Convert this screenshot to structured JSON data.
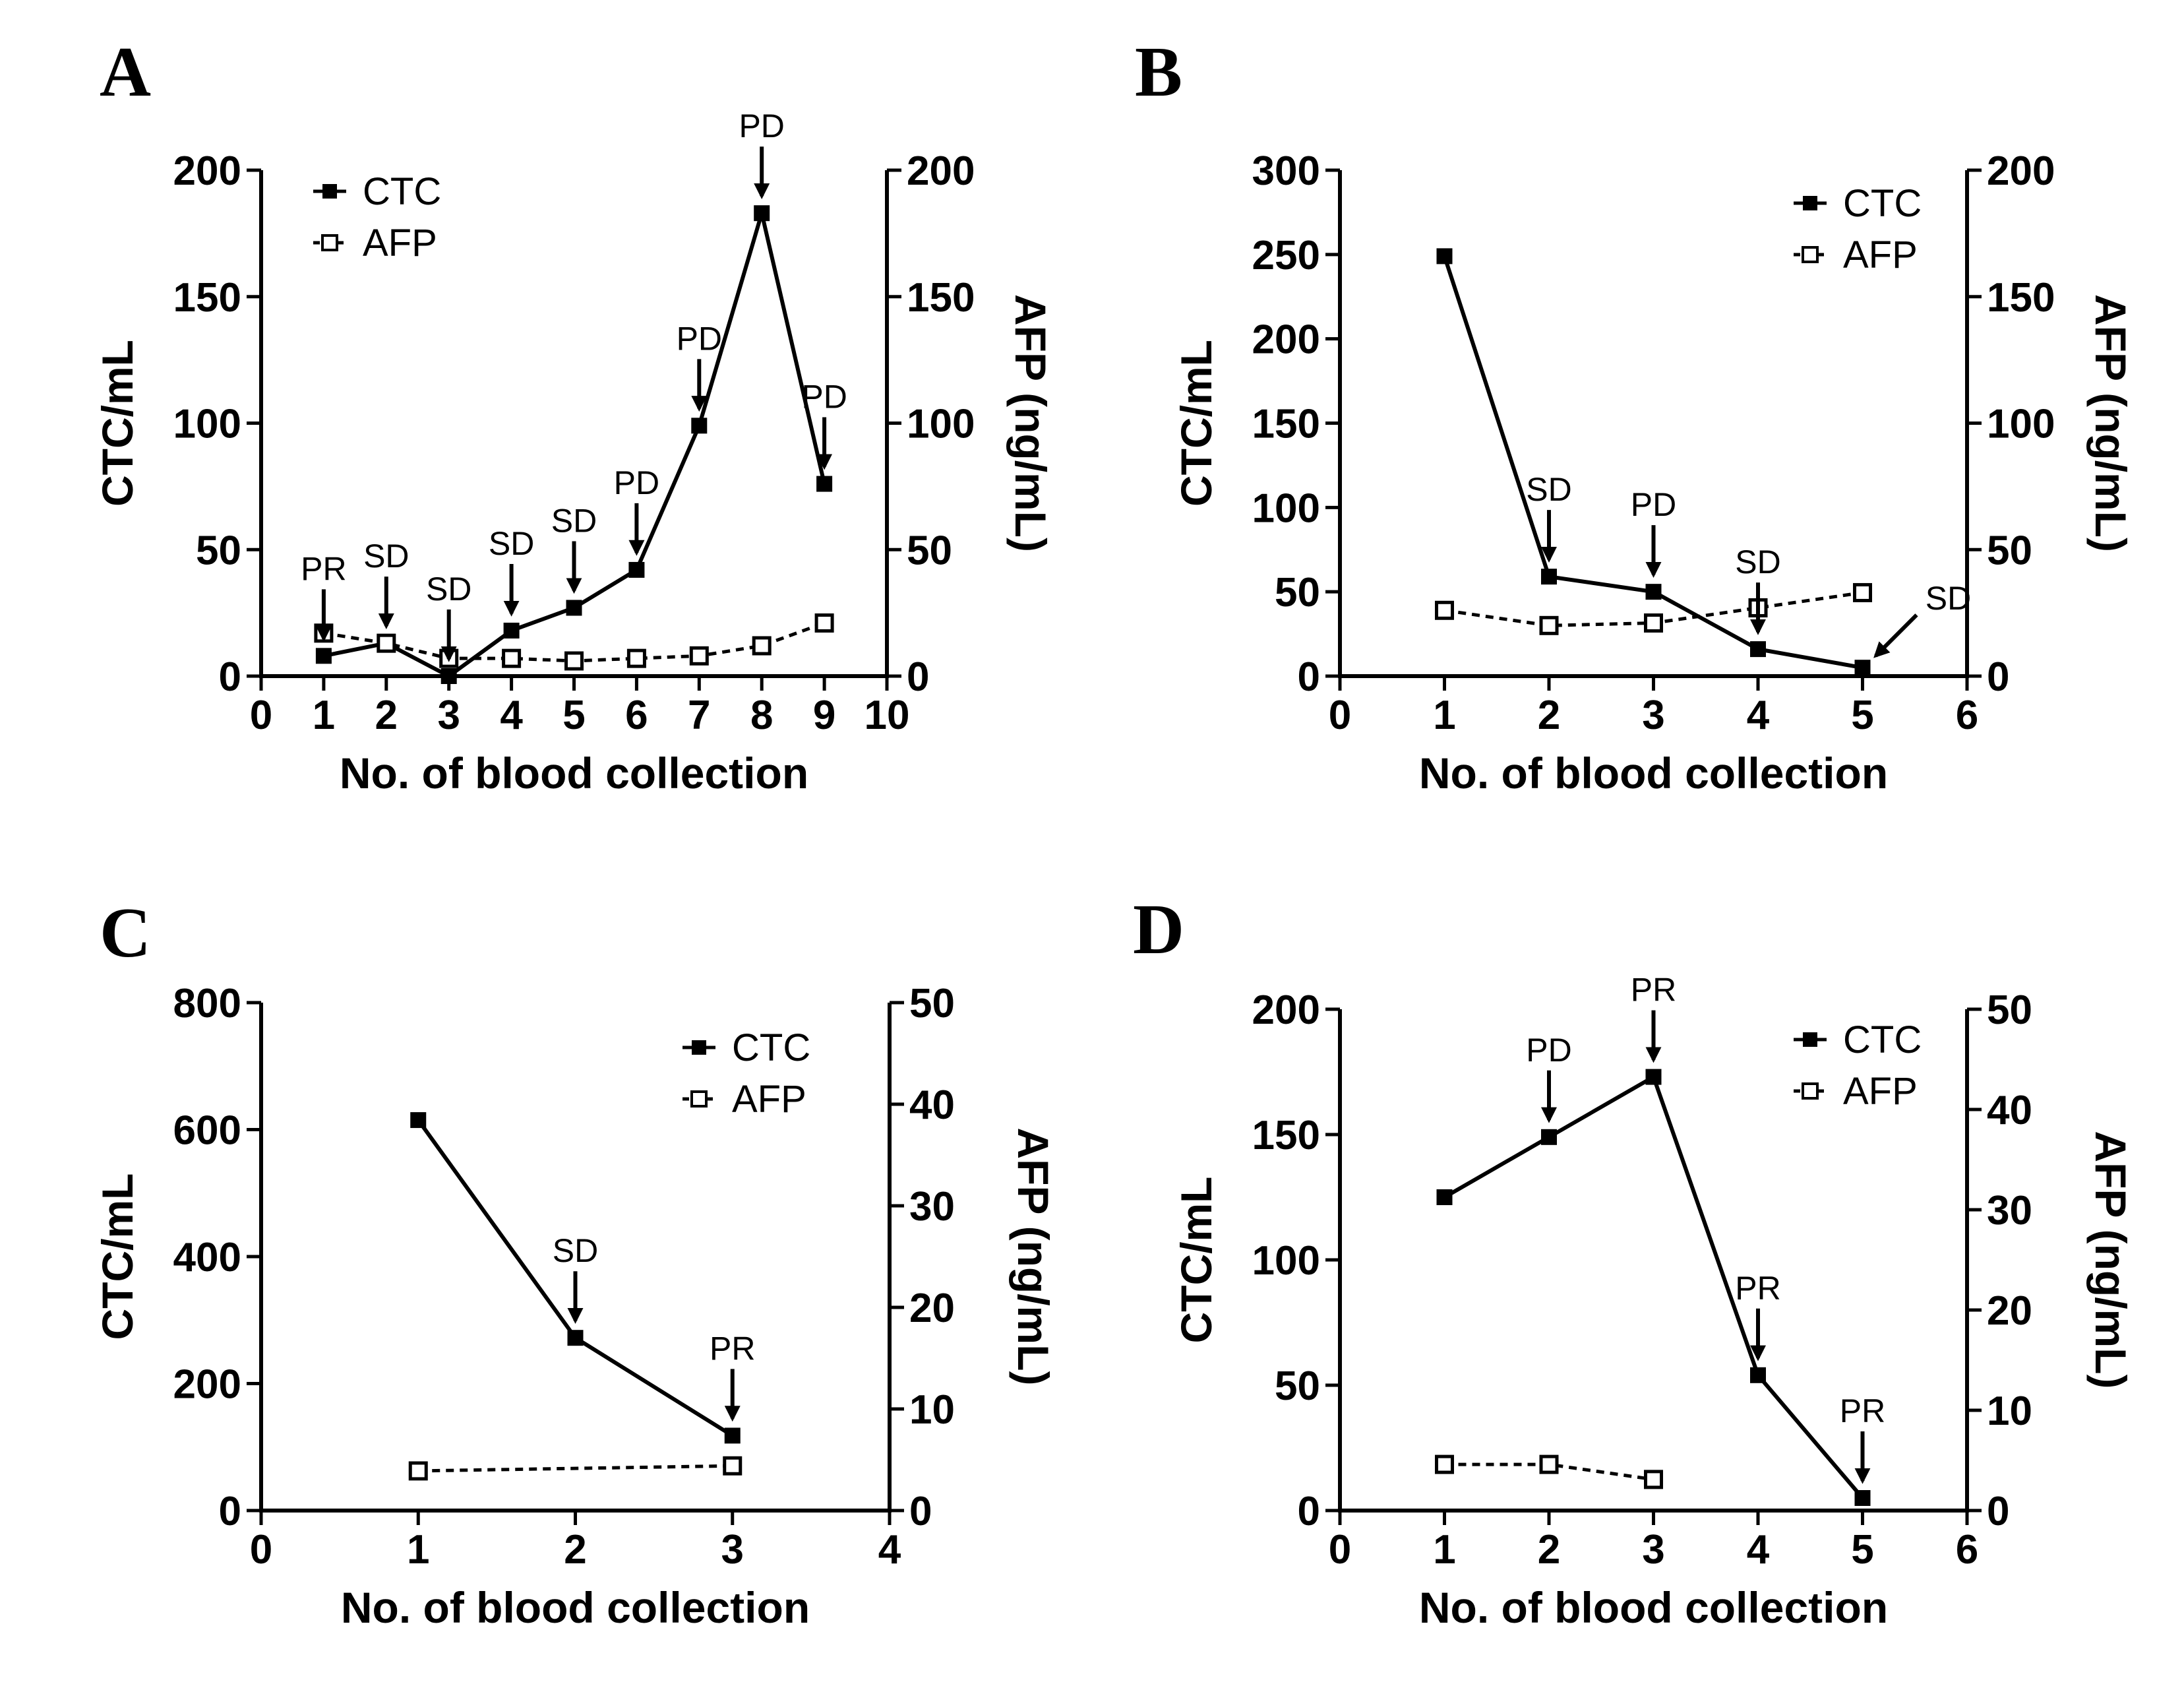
{
  "chart_data": [
    {
      "panel": "A",
      "type": "line",
      "xlabel": "No. of blood collection",
      "ylabel": "CTC/mL",
      "y2label": "AFP (ng/mL)",
      "xlim": [
        0,
        10
      ],
      "xticks": [
        0,
        1,
        2,
        3,
        4,
        5,
        6,
        7,
        8,
        9,
        10
      ],
      "ylim": [
        0,
        200
      ],
      "yticks": [
        0,
        50,
        100,
        150,
        200
      ],
      "y2lim": [
        0,
        200
      ],
      "y2ticks": [
        0,
        50,
        100,
        150,
        200
      ],
      "legend_position": "top-left",
      "series": [
        {
          "name": "CTC",
          "axis": "left",
          "style": "solid",
          "marker": "filled-square",
          "x": [
            1,
            2,
            3,
            4,
            5,
            6,
            7,
            8,
            9
          ],
          "values": [
            8,
            13,
            0,
            18,
            27,
            42,
            99,
            183,
            76
          ]
        },
        {
          "name": "AFP",
          "axis": "right",
          "style": "dashed",
          "marker": "open-square",
          "x": [
            1,
            2,
            3,
            4,
            5,
            6,
            7,
            8,
            9
          ],
          "values": [
            17,
            13,
            7,
            7,
            6,
            7,
            8,
            12,
            21
          ]
        }
      ],
      "annotations": [
        {
          "label": "PR",
          "x": 1,
          "y": 8
        },
        {
          "label": "SD",
          "x": 2,
          "y": 13
        },
        {
          "label": "SD",
          "x": 3,
          "y": 0
        },
        {
          "label": "SD",
          "x": 4,
          "y": 18
        },
        {
          "label": "SD",
          "x": 5,
          "y": 27
        },
        {
          "label": "PD",
          "x": 6,
          "y": 42
        },
        {
          "label": "PD",
          "x": 7,
          "y": 99
        },
        {
          "label": "PD",
          "x": 8,
          "y": 183
        },
        {
          "label": "PD",
          "x": 9,
          "y": 76
        }
      ]
    },
    {
      "panel": "B",
      "type": "line",
      "xlabel": "No. of blood collection",
      "ylabel": "CTC/mL",
      "y2label": "AFP (ng/mL)",
      "xlim": [
        0,
        6
      ],
      "xticks": [
        0,
        1,
        2,
        3,
        4,
        5,
        6
      ],
      "ylim": [
        0,
        300
      ],
      "yticks": [
        0,
        50,
        100,
        150,
        200,
        250,
        300
      ],
      "y2lim": [
        0,
        200
      ],
      "y2ticks": [
        0,
        50,
        100,
        150,
        200
      ],
      "legend_position": "top-right",
      "series": [
        {
          "name": "CTC",
          "axis": "left",
          "style": "solid",
          "marker": "filled-square",
          "x": [
            1,
            2,
            3,
            4,
            5
          ],
          "values": [
            249,
            59,
            50,
            16,
            5
          ]
        },
        {
          "name": "AFP",
          "axis": "right",
          "style": "dashed",
          "marker": "open-square",
          "x": [
            1,
            2,
            3,
            4,
            5
          ],
          "values": [
            26,
            20,
            21,
            27,
            33
          ]
        }
      ],
      "annotations": [
        {
          "label": "SD",
          "x": 2,
          "y": 59
        },
        {
          "label": "PD",
          "x": 3,
          "y": 50
        },
        {
          "label": "SD",
          "x": 4,
          "y": 16
        },
        {
          "label": "SD",
          "x": 5,
          "y": 5,
          "diagonal": true
        }
      ]
    },
    {
      "panel": "C",
      "type": "line",
      "xlabel": "No. of blood collection",
      "ylabel": "CTC/mL",
      "y2label": "AFP (ng/mL)",
      "xlim": [
        0,
        4
      ],
      "xticks": [
        0,
        1,
        2,
        3,
        4
      ],
      "ylim": [
        0,
        800
      ],
      "yticks": [
        0,
        200,
        400,
        600,
        800
      ],
      "y2lim": [
        0,
        50
      ],
      "y2ticks": [
        0,
        10,
        20,
        30,
        40,
        50
      ],
      "legend_position": "top-right",
      "series": [
        {
          "name": "CTC",
          "axis": "left",
          "style": "solid",
          "marker": "filled-square",
          "x": [
            1,
            2,
            3
          ],
          "values": [
            615,
            272,
            118
          ]
        },
        {
          "name": "AFP",
          "axis": "right",
          "style": "dashed",
          "marker": "open-square",
          "x": [
            1,
            3
          ],
          "values": [
            3.9,
            4.4
          ]
        }
      ],
      "annotations": [
        {
          "label": "SD",
          "x": 2,
          "y": 272
        },
        {
          "label": "PR",
          "x": 3,
          "y": 118
        }
      ]
    },
    {
      "panel": "D",
      "type": "line",
      "xlabel": "No. of blood collection",
      "ylabel": "CTC/mL",
      "y2label": "AFP (ng/mL)",
      "xlim": [
        0,
        6
      ],
      "xticks": [
        0,
        1,
        2,
        3,
        4,
        5,
        6
      ],
      "ylim": [
        0,
        200
      ],
      "yticks": [
        0,
        50,
        100,
        150,
        200
      ],
      "y2lim": [
        0,
        50
      ],
      "y2ticks": [
        0,
        10,
        20,
        30,
        40,
        50
      ],
      "legend_position": "top-right",
      "series": [
        {
          "name": "CTC",
          "axis": "left",
          "style": "solid",
          "marker": "filled-square",
          "x": [
            1,
            2,
            3,
            4,
            5
          ],
          "values": [
            125,
            149,
            173,
            54,
            5
          ]
        },
        {
          "name": "AFP",
          "axis": "right",
          "style": "dashed",
          "marker": "open-square",
          "x": [
            1,
            2,
            3
          ],
          "values": [
            4.6,
            4.6,
            3.1
          ]
        }
      ],
      "annotations": [
        {
          "label": "PD",
          "x": 2,
          "y": 149
        },
        {
          "label": "PR",
          "x": 3,
          "y": 173
        },
        {
          "label": "PR",
          "x": 4,
          "y": 54
        },
        {
          "label": "PR",
          "x": 5,
          "y": 5
        }
      ]
    }
  ]
}
